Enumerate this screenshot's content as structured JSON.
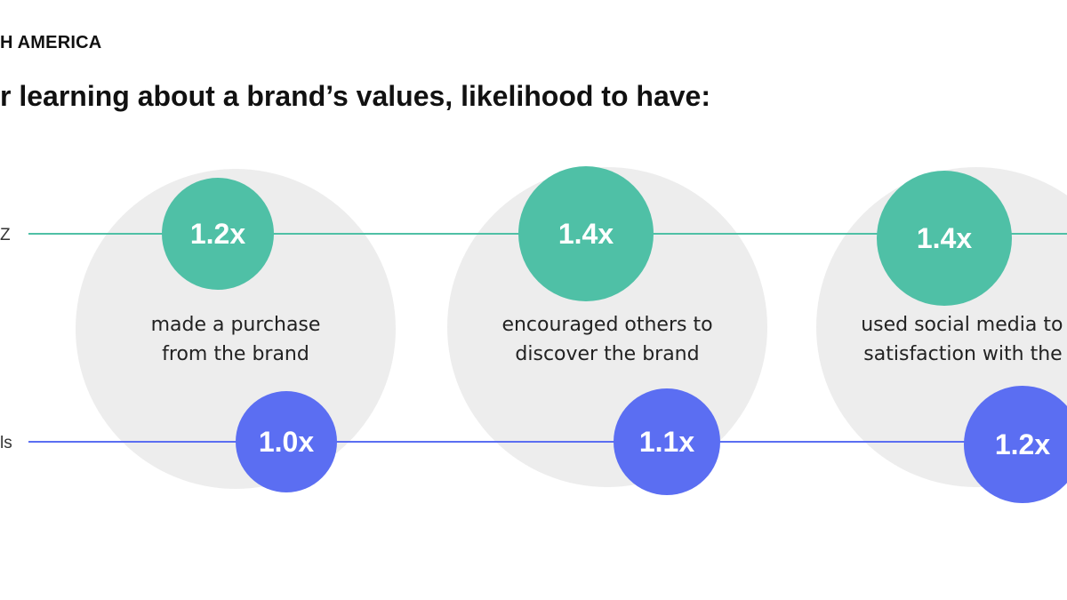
{
  "header": {
    "region": "H AMERICA",
    "title": "r learning about a brand’s values, likelihood to have:"
  },
  "colors": {
    "genz": "#4fc0a6",
    "millennials": "#5b6ef2",
    "background_circle": "#ededed"
  },
  "chart_data": {
    "type": "scatter",
    "series": [
      {
        "name": "Z",
        "values": [
          1.2,
          1.4,
          1.4
        ],
        "labels": [
          "1.2x",
          "1.4x",
          "1.4x"
        ]
      },
      {
        "name": "ls",
        "values": [
          1.0,
          1.1,
          1.2
        ],
        "labels": [
          "1.0x",
          "1.1x",
          "1.2x"
        ]
      }
    ],
    "categories": [
      [
        "made a purchase",
        "from the brand"
      ],
      [
        "encouraged  others to",
        "discover  the brand"
      ],
      [
        "used social  media to sh",
        "satisfaction  with the br"
      ]
    ]
  }
}
